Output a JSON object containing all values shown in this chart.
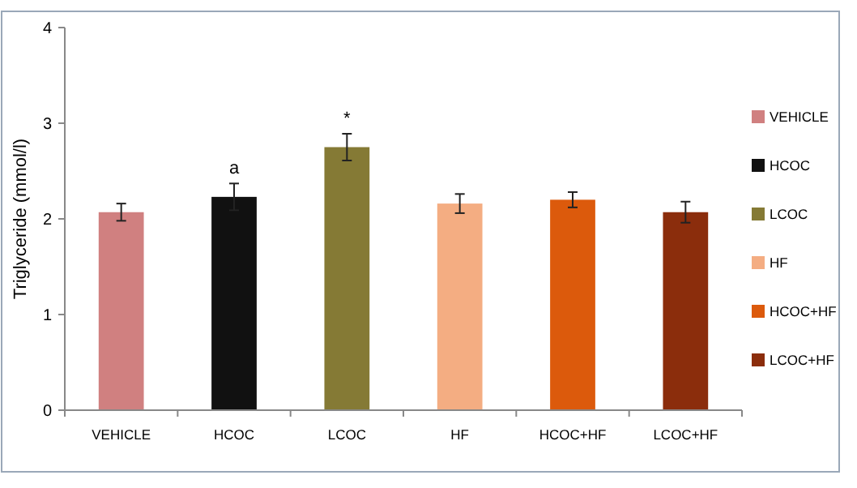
{
  "chart_data": {
    "type": "bar",
    "ylabel": "Triglyceride (mmol/l)",
    "stacked": true,
    "categories": [
      "VEHICLE",
      "HCOC",
      "LCOC",
      "HF",
      "HCOC+HF",
      "LCOC+HF"
    ],
    "series": [
      {
        "name": "VEHICLE",
        "color": "#d08080",
        "values": [
          2.07,
          null,
          null,
          null,
          null,
          null
        ],
        "errors": [
          0.09,
          null,
          null,
          null,
          null,
          null
        ]
      },
      {
        "name": "HCOC",
        "color": "#111111",
        "values": [
          null,
          2.23,
          null,
          null,
          null,
          null
        ],
        "errors": [
          null,
          0.14,
          null,
          null,
          null,
          null
        ]
      },
      {
        "name": "LCOC",
        "color": "#857a35",
        "values": [
          null,
          null,
          2.75,
          null,
          null,
          null
        ],
        "errors": [
          null,
          null,
          0.14,
          null,
          null,
          null
        ]
      },
      {
        "name": "HF",
        "color": "#f4ad82",
        "values": [
          null,
          null,
          null,
          2.16,
          null,
          null
        ],
        "errors": [
          null,
          null,
          null,
          0.1,
          null,
          null
        ]
      },
      {
        "name": "HCOC+HF",
        "color": "#dc5a0c",
        "values": [
          null,
          null,
          null,
          null,
          2.2,
          null
        ],
        "errors": [
          null,
          null,
          null,
          null,
          0.08,
          null
        ]
      },
      {
        "name": "LCOC+HF",
        "color": "#8b2d0c",
        "values": [
          null,
          null,
          null,
          null,
          null,
          2.07
        ],
        "errors": [
          null,
          null,
          null,
          null,
          null,
          0.11
        ]
      }
    ],
    "ylim": [
      0,
      4
    ],
    "yticks": [
      0,
      1,
      2,
      3,
      4
    ],
    "grid": false,
    "legend": "right",
    "annotations": [
      {
        "text": "a",
        "x": "HCOC",
        "y": 2.23
      },
      {
        "text": "*",
        "x": "LCOC",
        "y": 2.75
      }
    ]
  }
}
